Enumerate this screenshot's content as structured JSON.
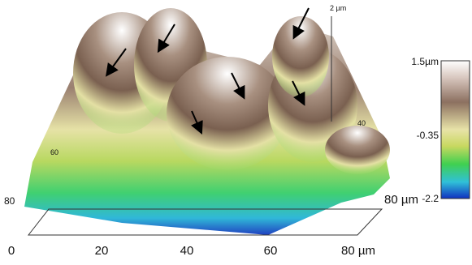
{
  "colorbar": {
    "ticks": [
      "1.5µm",
      "-0.35",
      "-2.2"
    ]
  },
  "axes": {
    "x_ticks": [
      "0",
      "20",
      "40",
      "60",
      "80 µm"
    ],
    "y_tick_right": "80 µm",
    "y_tick_left": "80",
    "z_tick": "2 µm"
  },
  "extra_labels": [
    "40",
    "60"
  ]
}
